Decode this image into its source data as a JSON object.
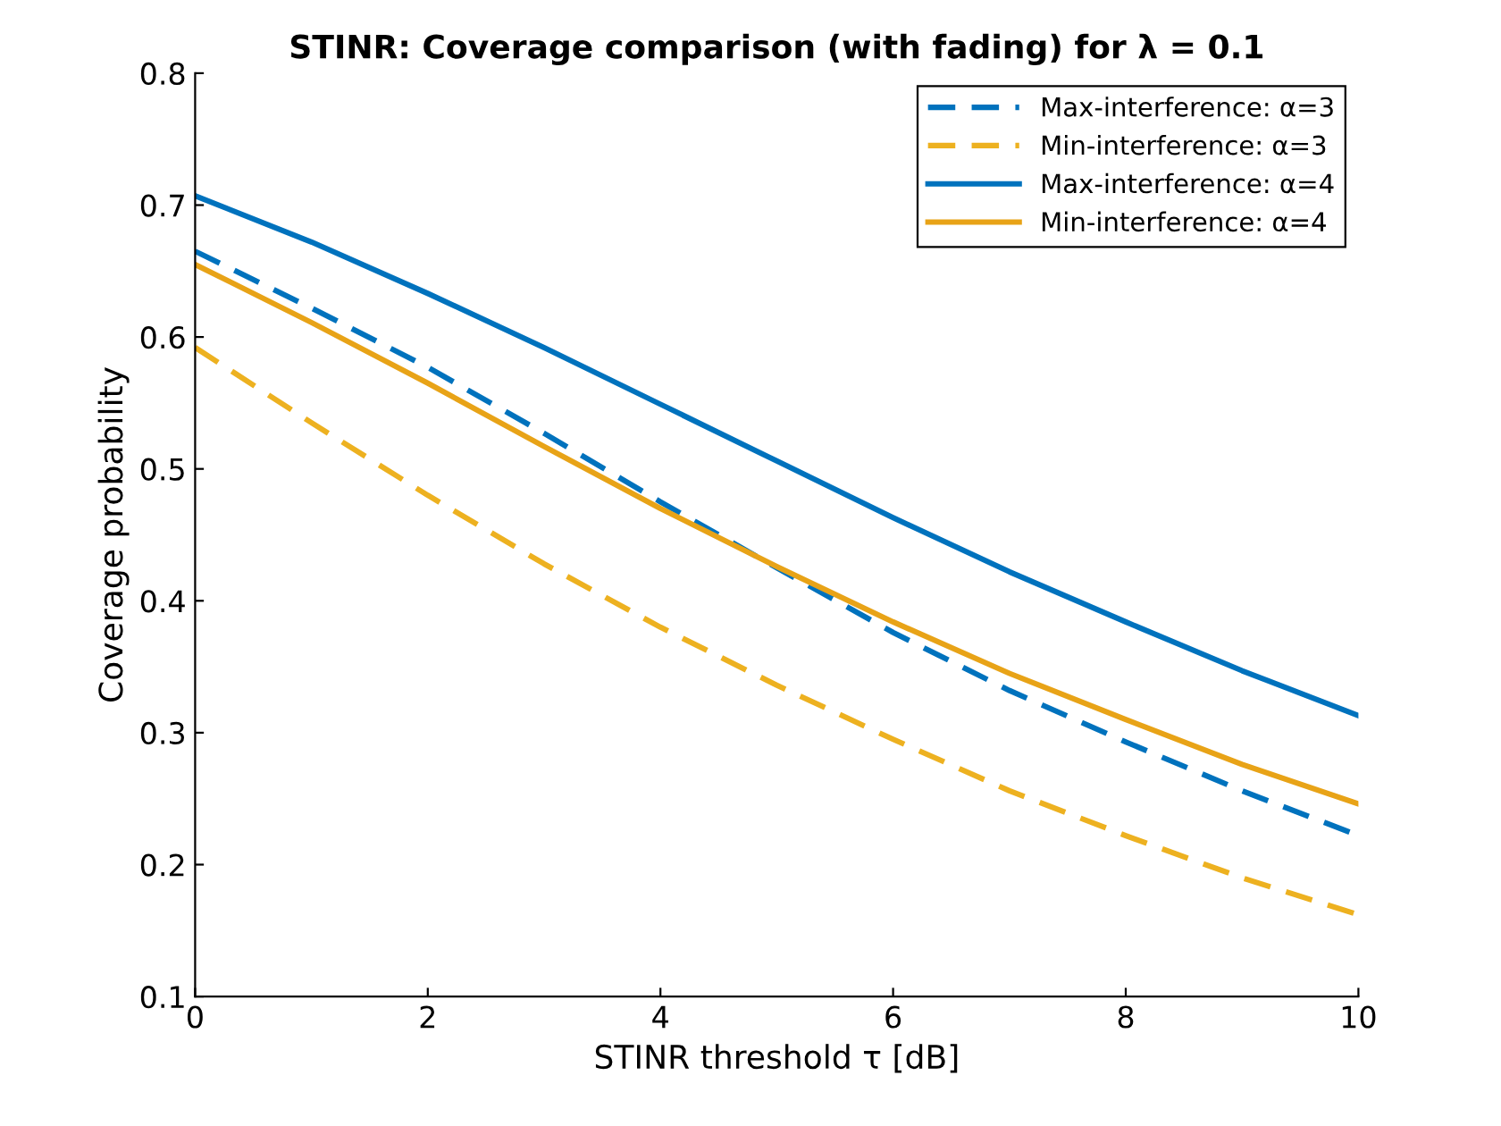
{
  "chart_data": {
    "type": "line",
    "title": "STINR: Coverage comparison (with fading) for λ = 0.1",
    "xlabel": "STINR threshold τ [dB]",
    "ylabel": "Coverage probability",
    "x": [
      0,
      1,
      2,
      3,
      4,
      5,
      6,
      7,
      8,
      9,
      10
    ],
    "series": [
      {
        "name": "Max-interference: α=3",
        "color": "#0072bd",
        "line_style": "dashed",
        "values": [
          0.665,
          0.622,
          0.577,
          0.527,
          0.475,
          0.425,
          0.376,
          0.332,
          0.293,
          0.256,
          0.222
        ]
      },
      {
        "name": "Min-interference: α=3",
        "color": "#edb120",
        "line_style": "dashed",
        "values": [
          0.592,
          0.535,
          0.48,
          0.428,
          0.38,
          0.336,
          0.295,
          0.256,
          0.222,
          0.19,
          0.162
        ]
      },
      {
        "name": "Max-interference: α=4",
        "color": "#0072bd",
        "line_style": "solid",
        "values": [
          0.707,
          0.672,
          0.633,
          0.592,
          0.549,
          0.506,
          0.463,
          0.422,
          0.384,
          0.347,
          0.313
        ]
      },
      {
        "name": "Min-interference: α=4",
        "color": "#e8a317",
        "line_style": "solid",
        "values": [
          0.655,
          0.611,
          0.565,
          0.517,
          0.47,
          0.426,
          0.384,
          0.345,
          0.31,
          0.276,
          0.246
        ]
      }
    ],
    "xlim": [
      0,
      10
    ],
    "xticks": [
      0,
      2,
      4,
      6,
      8,
      10
    ],
    "ylim": [
      0.1,
      0.8
    ],
    "yticks": [
      0.1,
      0.2,
      0.3,
      0.4,
      0.5,
      0.6,
      0.7,
      0.8
    ],
    "grid": false,
    "legend": "top right",
    "marker": "none"
  }
}
